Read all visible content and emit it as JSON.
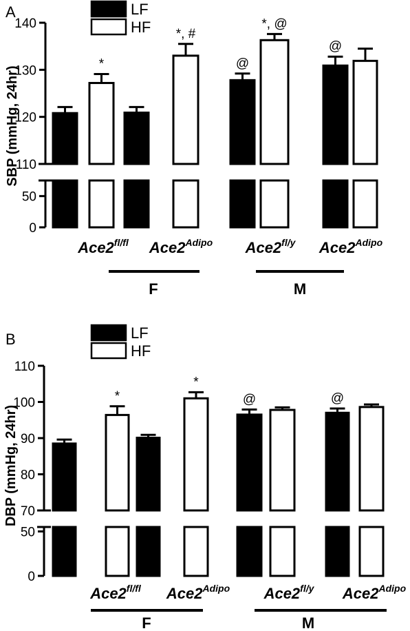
{
  "chart_data": [
    {
      "type": "bar",
      "panel": "A",
      "ylabel": "SBP (mmHg, 24hr)",
      "axis_break": true,
      "ylim_lower": [
        0,
        75
      ],
      "ylim_upper": [
        110,
        140
      ],
      "yticks_lower": [
        "0",
        "50"
      ],
      "yticks_upper": [
        "110",
        "120",
        "130",
        "140"
      ],
      "legend": {
        "position": "top-left",
        "entries": [
          {
            "label": "LF",
            "fill": "#000000"
          },
          {
            "label": "HF",
            "fill": "#ffffff"
          }
        ]
      },
      "categories": [
        {
          "base": "Ace2",
          "sup": "fl/fl"
        },
        {
          "base": "Ace2",
          "sup": "Adipo"
        },
        {
          "base": "Ace2",
          "sup": "fl/y"
        },
        {
          "base": "Ace2",
          "sup": "Adipo"
        }
      ],
      "groups": [
        {
          "label": "F",
          "categories": [
            0,
            1
          ]
        },
        {
          "label": "M",
          "categories": [
            2,
            3
          ]
        }
      ],
      "series": [
        {
          "name": "LF",
          "values": [
            120.8,
            120.9,
            127.8,
            130.9
          ],
          "errors": [
            1.3,
            1.2,
            1.4,
            1.9
          ],
          "annotations": [
            "",
            "",
            "@",
            "@"
          ]
        },
        {
          "name": "HF",
          "values": [
            127.2,
            133.0,
            136.3,
            131.9
          ],
          "errors": [
            1.9,
            2.5,
            1.3,
            2.6
          ],
          "annotations": [
            "*",
            "*, #",
            "*, @",
            ""
          ]
        }
      ]
    },
    {
      "type": "bar",
      "panel": "B",
      "ylabel": "DBP (mmHg, 24hr)",
      "axis_break": true,
      "ylim_lower": [
        0,
        55
      ],
      "ylim_upper": [
        70,
        110
      ],
      "yticks_lower": [
        "0",
        "50"
      ],
      "yticks_upper": [
        "70",
        "80",
        "90",
        "100",
        "110"
      ],
      "legend": {
        "position": "top-left",
        "entries": [
          {
            "label": "LF",
            "fill": "#000000"
          },
          {
            "label": "HF",
            "fill": "#ffffff"
          }
        ]
      },
      "categories": [
        {
          "base": "Ace2",
          "sup": "fl/fl"
        },
        {
          "base": "Ace2",
          "sup": "Adipo"
        },
        {
          "base": "Ace2",
          "sup": "fl/y"
        },
        {
          "base": "Ace2",
          "sup": "Adipo"
        }
      ],
      "groups": [
        {
          "label": "F",
          "categories": [
            0,
            1
          ]
        },
        {
          "label": "M",
          "categories": [
            2,
            3
          ]
        }
      ],
      "series": [
        {
          "name": "LF",
          "values": [
            88.5,
            90.1,
            96.5,
            97.0
          ],
          "errors": [
            1.1,
            0.8,
            1.4,
            1.2
          ],
          "annotations": [
            "",
            "",
            "@",
            "@"
          ]
        },
        {
          "name": "HF",
          "values": [
            96.4,
            101.0,
            97.8,
            98.6
          ],
          "errors": [
            2.4,
            1.7,
            0.7,
            0.7
          ],
          "annotations": [
            "*",
            "*",
            "",
            ""
          ]
        }
      ]
    }
  ]
}
